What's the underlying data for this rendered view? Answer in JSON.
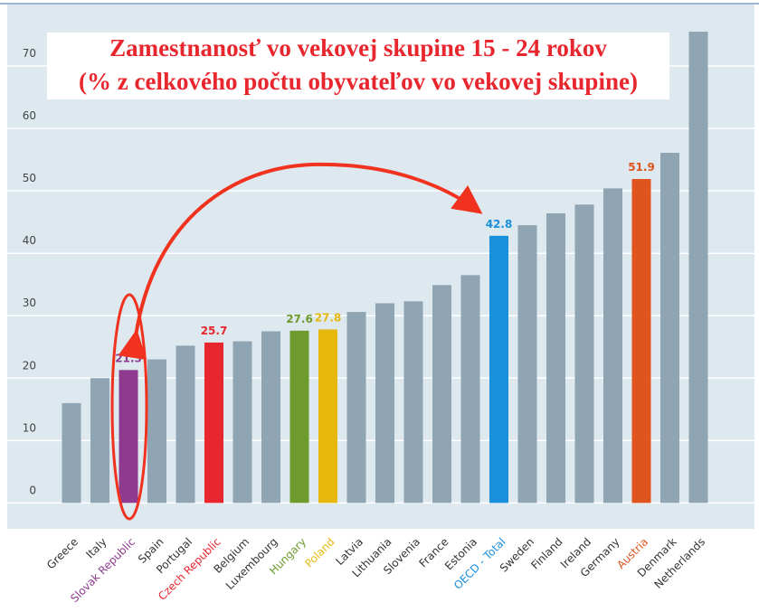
{
  "chart_data": {
    "type": "bar",
    "title": "Zamestnanosť vo vekovej skupine 15 - 24 rokov",
    "subtitle": "(% z celkového počtu obyvateľov vo vekovej skupine)",
    "categories": [
      "Greece",
      "Italy",
      "Slovak Republic",
      "Spain",
      "Portugal",
      "Czech Republic",
      "Belgium",
      "Luxembourg",
      "Hungary",
      "Poland",
      "Latvia",
      "Lithuania",
      "Slovenia",
      "France",
      "Estonia",
      "OECD - Total",
      "Sweden",
      "Finland",
      "Ireland",
      "Germany",
      "Austria",
      "Denmark",
      "Netherlands"
    ],
    "values": [
      16,
      20,
      21.3,
      23,
      25.2,
      25.7,
      25.9,
      27.5,
      27.6,
      27.8,
      30.6,
      32,
      32.3,
      34.9,
      36.5,
      42.8,
      44.5,
      46.4,
      47.8,
      50.4,
      51.9,
      56.1,
      75.5
    ],
    "color": "#8fa5b3",
    "colors": [
      "#8fa5b3",
      "#8fa5b3",
      "#8e3a8e",
      "#8fa5b3",
      "#8fa5b3",
      "#e8262e",
      "#8fa5b3",
      "#8fa5b3",
      "#6e9a2e",
      "#e6b80e",
      "#8fa5b3",
      "#8fa5b3",
      "#8fa5b3",
      "#8fa5b3",
      "#8fa5b3",
      "#1a8fdb",
      "#8fa5b3",
      "#8fa5b3",
      "#8fa5b3",
      "#8fa5b3",
      "#e0541f",
      "#8fa5b3",
      "#8fa5b3"
    ],
    "ylim": [
      -4,
      80
    ],
    "yticks": [
      0,
      10,
      20,
      30,
      40,
      50,
      60,
      70
    ],
    "grid": true
  }
}
